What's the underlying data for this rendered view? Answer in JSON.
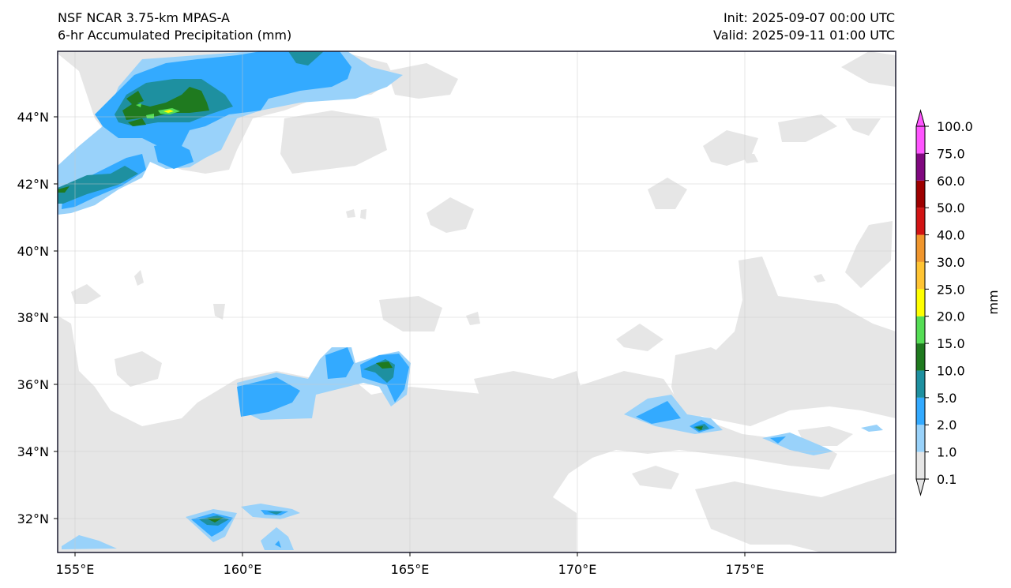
{
  "header": {
    "model_title": "NSF NCAR 3.75-km MPAS-A",
    "field_title": "6-hr Accumulated Precipitation (mm)",
    "init_time": "Init: 2025-09-07 00:00 UTC",
    "valid_time": "Valid: 2025-09-11 01:00 UTC"
  },
  "map": {
    "lon_labels": [
      "155°E",
      "160°E",
      "165°E",
      "170°E",
      "175°E"
    ],
    "lat_labels": [
      "32°N",
      "34°N",
      "36°N",
      "38°N",
      "40°N",
      "42°N",
      "44°N"
    ],
    "gridlines": true
  },
  "colorbar": {
    "unit_label": "mm",
    "levels": [
      "0.1",
      "1.0",
      "2.0",
      "5.0",
      "10.0",
      "15.0",
      "20.0",
      "25.0",
      "30.0",
      "40.0",
      "50.0",
      "60.0",
      "75.0",
      "100.0"
    ],
    "colors": [
      "#e6e6e6",
      "#99d2fa",
      "#33aaff",
      "#1e90a0",
      "#1f7a1f",
      "#55dd55",
      "#ffff00",
      "#ffc433",
      "#f0962d",
      "#d21414",
      "#9e0000",
      "#80087f",
      "#ff55ff"
    ],
    "extend": "both"
  }
}
